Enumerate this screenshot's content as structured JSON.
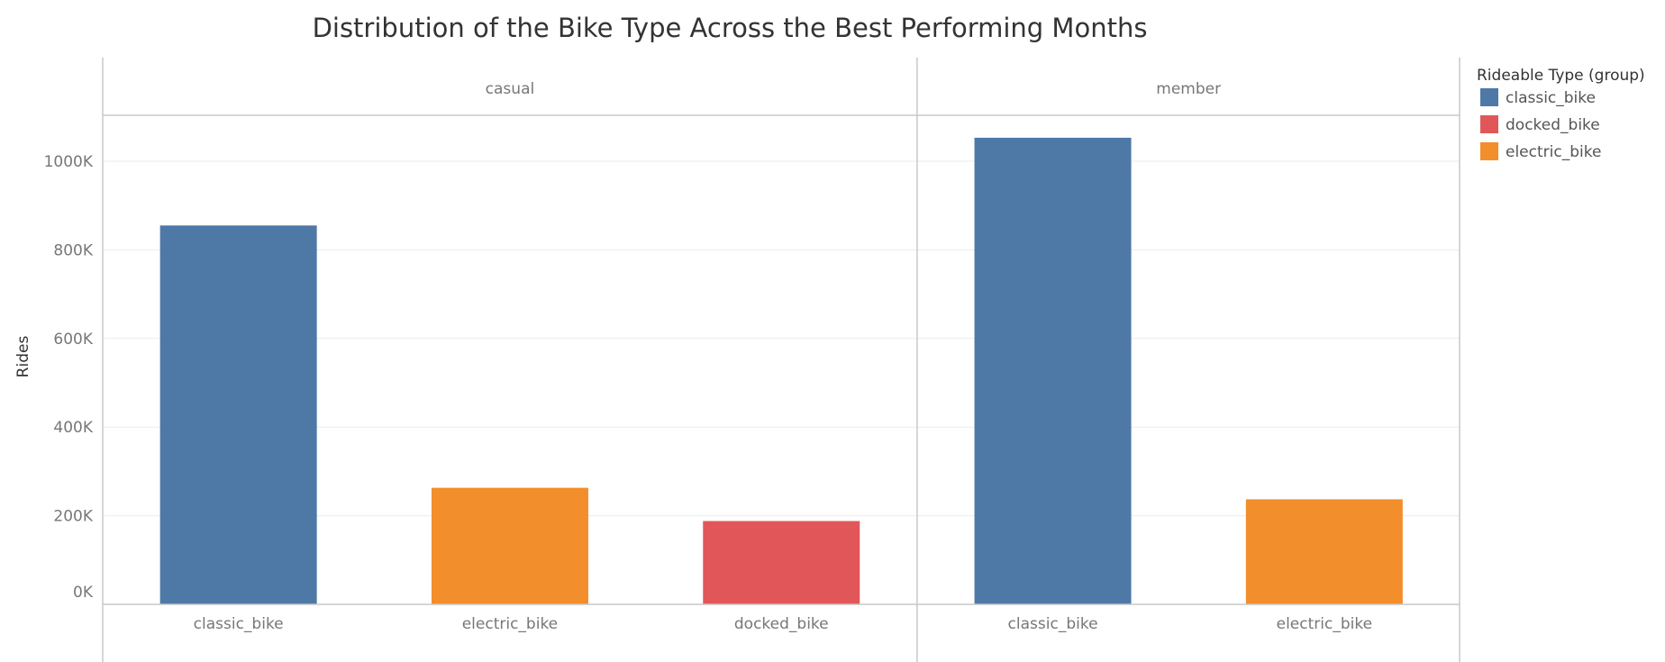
{
  "chart_data": {
    "type": "bar",
    "title": "Distribution of the Bike Type Across the Best Performing Months",
    "ylabel": "Rides",
    "xlabel": "",
    "ylim": [
      0,
      1000000
    ],
    "yticks": [
      {
        "value": 0,
        "label": "0K"
      },
      {
        "value": 200000,
        "label": "200K"
      },
      {
        "value": 400000,
        "label": "400K"
      },
      {
        "value": 600000,
        "label": "600K"
      },
      {
        "value": 800000,
        "label": "800K"
      },
      {
        "value": 1000000,
        "label": "1000K"
      }
    ],
    "grid": true,
    "legend": {
      "title": "Rideable Type (group)",
      "placement": "right",
      "items": [
        {
          "name": "classic_bike",
          "color": "#4e79a7"
        },
        {
          "name": "docked_bike",
          "color": "#e15759"
        },
        {
          "name": "electric_bike",
          "color": "#f28e2b"
        }
      ]
    },
    "panels": [
      {
        "name": "casual",
        "bars": [
          {
            "category": "classic_bike",
            "value": 855000
          },
          {
            "category": "electric_bike",
            "value": 263000
          },
          {
            "category": "docked_bike",
            "value": 188000
          }
        ]
      },
      {
        "name": "member",
        "bars": [
          {
            "category": "classic_bike",
            "value": 1053000
          },
          {
            "category": "electric_bike",
            "value": 237000
          }
        ]
      }
    ]
  }
}
